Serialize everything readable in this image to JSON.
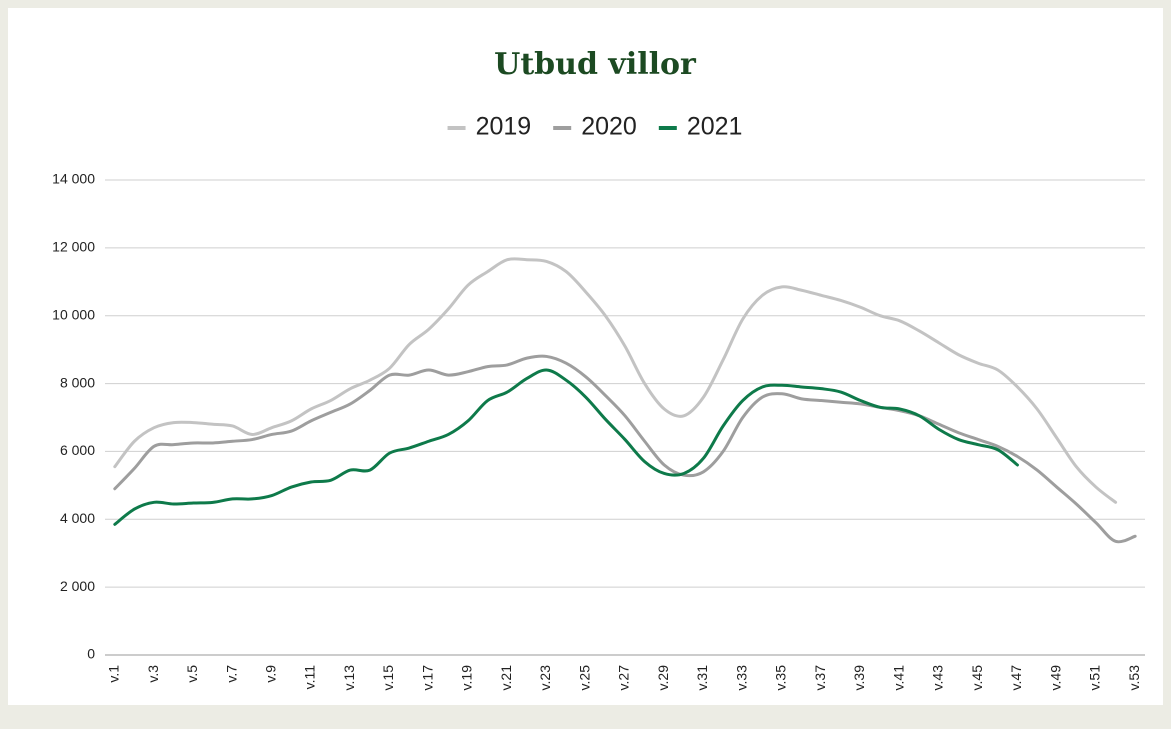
{
  "chart_data": {
    "type": "line",
    "title": "Utbud villor",
    "categories": [
      "v.1",
      null,
      "v.3",
      null,
      "v.5",
      null,
      "v.7",
      null,
      "v.9",
      null,
      "v.11",
      null,
      "v.13",
      null,
      "v.15",
      null,
      "v.17",
      null,
      "v.19",
      null,
      "v.21",
      null,
      "v.23",
      null,
      "v.25",
      null,
      "v.27",
      null,
      "v.29",
      null,
      "v.31",
      null,
      "v.33",
      null,
      "v.35",
      null,
      "v.37",
      null,
      "v.39",
      null,
      "v.41",
      null,
      "v.43",
      null,
      "v.45",
      null,
      "v.47",
      null,
      "v.49",
      null,
      "v.51",
      null,
      "v.53"
    ],
    "series": [
      {
        "name": "2019",
        "color": "#c3c3c3",
        "values": [
          5550,
          6300,
          6700,
          6850,
          6850,
          6800,
          6750,
          6500,
          6700,
          6900,
          7250,
          7500,
          7850,
          8100,
          8450,
          9150,
          9600,
          10200,
          10900,
          11300,
          11650,
          11650,
          11600,
          11300,
          10700,
          10000,
          9100,
          8000,
          7250,
          7050,
          7600,
          8700,
          9900,
          10600,
          10850,
          10750,
          10600,
          10450,
          10250,
          10000,
          9850,
          9550,
          9200,
          8850,
          8600,
          8400,
          7900,
          7250,
          6400,
          5550,
          4950,
          4500,
          null
        ]
      },
      {
        "name": "2020",
        "color": "#9e9e9e",
        "values": [
          4900,
          5500,
          6150,
          6200,
          6250,
          6250,
          6300,
          6350,
          6500,
          6600,
          6900,
          7150,
          7400,
          7800,
          8250,
          8250,
          8400,
          8250,
          8350,
          8500,
          8550,
          8750,
          8800,
          8600,
          8200,
          7650,
          7050,
          6300,
          5600,
          5300,
          5400,
          6000,
          7000,
          7600,
          7700,
          7550,
          7500,
          7450,
          7400,
          7300,
          7200,
          7050,
          6800,
          6550,
          6350,
          6150,
          5850,
          5450,
          4950,
          4450,
          3900,
          3350,
          3500
        ]
      },
      {
        "name": "2021",
        "color": "#0e7a4a",
        "values": [
          3850,
          4300,
          4500,
          4450,
          4480,
          4500,
          4600,
          4600,
          4700,
          4950,
          5100,
          5150,
          5450,
          5450,
          5950,
          6100,
          6300,
          6500,
          6900,
          7500,
          7750,
          8150,
          8400,
          8100,
          7600,
          6950,
          6350,
          5700,
          5350,
          5350,
          5800,
          6750,
          7500,
          7900,
          7950,
          7900,
          7850,
          7750,
          7500,
          7300,
          7250,
          7050,
          6650,
          6350,
          6200,
          6050,
          5600,
          null,
          null,
          null,
          null,
          null,
          null
        ]
      }
    ],
    "ylim": [
      0,
      14000
    ],
    "yticks": [
      0,
      {
        "value": 2000,
        "label": "2 000"
      },
      {
        "value": 4000,
        "label": "4 000"
      },
      {
        "value": 6000,
        "label": "6 000"
      },
      {
        "value": 8000,
        "label": "8 000"
      },
      {
        "value": 10000,
        "label": "10 000"
      },
      {
        "value": 12000,
        "label": "12 000"
      },
      {
        "value": 14000,
        "label": "14 000"
      }
    ],
    "grid": true,
    "legend": "top"
  }
}
